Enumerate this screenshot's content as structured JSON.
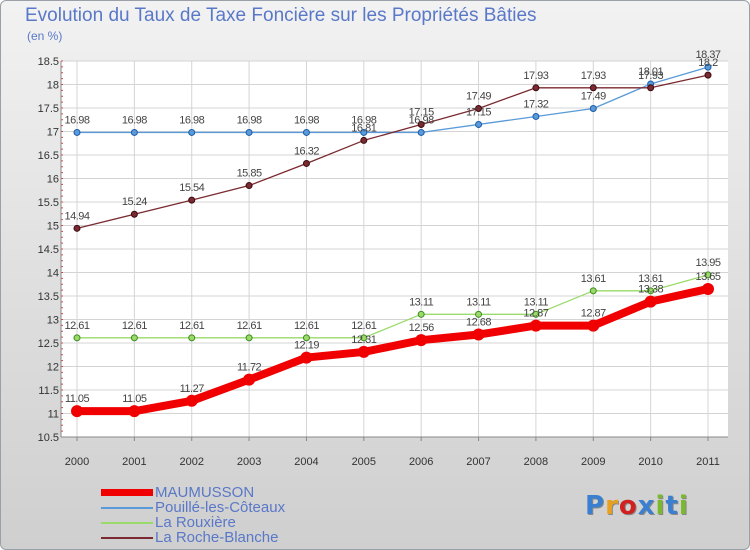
{
  "title": "Evolution du Taux de Taxe Foncière sur les Propriétés Bâties",
  "unit_label": "(en %)",
  "logo": {
    "text": "Proxiti",
    "letter_colors": [
      "#3a7fd0",
      "#e8a020",
      "#d02020",
      "#3a7fd0",
      "#7ab830",
      "#3a7fd0",
      "#7ab830"
    ]
  },
  "chart_data": {
    "type": "line",
    "title": "Evolution du Taux de Taxe Foncière sur les Propriétés Bâties",
    "ylabel": "(en %)",
    "x": [
      "2000",
      "2001",
      "2002",
      "2003",
      "2004",
      "2005",
      "2006",
      "2007",
      "2008",
      "2009",
      "2010",
      "2011"
    ],
    "ylim": [
      10.5,
      18.5
    ],
    "yticks": [
      "10.5",
      "11",
      "11.5",
      "12",
      "12.5",
      "13",
      "13.5",
      "14",
      "14.5",
      "15",
      "15.5",
      "16",
      "16.5",
      "17",
      "17.5",
      "18",
      "18.5"
    ],
    "grid": true,
    "legend_position": "bottom-left",
    "series": [
      {
        "name": "MAUMUSSON",
        "color": "#f00000",
        "thick": true,
        "values": [
          11.05,
          11.05,
          11.27,
          11.72,
          12.19,
          12.31,
          12.56,
          12.68,
          12.87,
          12.87,
          13.38,
          13.65
        ],
        "labels": [
          "11.05",
          "11.05",
          "11.27",
          "11.72",
          "12.19",
          "12.31",
          "12.56",
          "12.68",
          "12.87",
          "12.87",
          "13.38",
          "13.65"
        ]
      },
      {
        "name": "Pouillé-les-Côteaux",
        "color": "#5a9ad8",
        "thick": false,
        "values": [
          16.98,
          16.98,
          16.98,
          16.98,
          16.98,
          16.98,
          16.98,
          17.15,
          17.32,
          17.49,
          18.01,
          18.37
        ],
        "labels": [
          "16.98",
          "16.98",
          "16.98",
          "16.98",
          "16.98",
          "16.98",
          "16.98",
          "17.15",
          "17.32",
          "17.49",
          "18.01",
          "18.37"
        ]
      },
      {
        "name": "La Rouxière",
        "color": "#9ada6a",
        "thick": false,
        "values": [
          12.61,
          12.61,
          12.61,
          12.61,
          12.61,
          12.61,
          13.11,
          13.11,
          13.11,
          13.61,
          13.61,
          13.95
        ],
        "labels": [
          "12.61",
          "12.61",
          "12.61",
          "12.61",
          "12.61",
          "12.61",
          "13.11",
          "13.11",
          "13.11",
          "13.61",
          "13.61",
          "13.95"
        ]
      },
      {
        "name": "La Roche-Blanche",
        "color": "#7a2a30",
        "thick": false,
        "values": [
          14.94,
          15.24,
          15.54,
          15.85,
          16.32,
          16.81,
          17.15,
          17.49,
          17.93,
          17.93,
          17.93,
          18.2
        ],
        "labels": [
          "14.94",
          "15.24",
          "15.54",
          "15.85",
          "16.32",
          "16.81",
          "17.15",
          "17.49",
          "17.93",
          "17.93",
          "17.93",
          "18.2"
        ]
      }
    ]
  }
}
